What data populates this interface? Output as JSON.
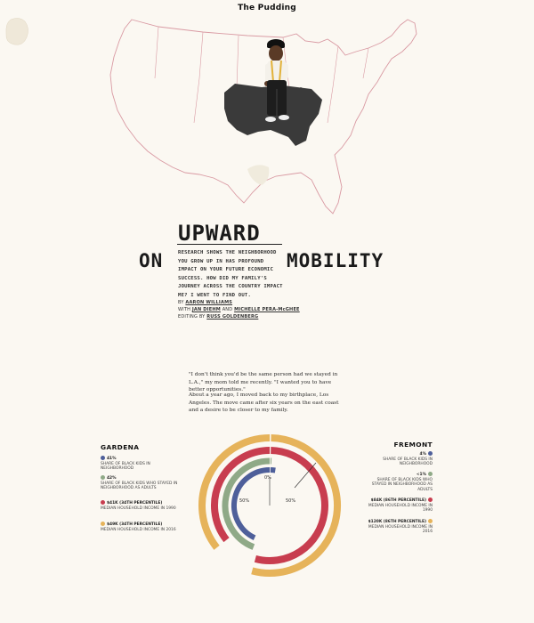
{
  "header": {
    "brand": "The Pudding"
  },
  "title": {
    "on": "ON",
    "upward": "UPWARD",
    "mobility": "MOBILITY"
  },
  "dek": "RESEARCH SHOWS THE NEIGHBORHOOD YOU GROW UP IN HAS PROFOUND IMPACT ON YOUR FUTURE ECONOMIC SUCCESS. HOW DID MY FAMILY'S JOURNEY ACROSS THE COUNTRY IMPACT ME? I WENT TO FIND OUT.",
  "byline": {
    "by": "BY",
    "author": "AARON WILLIAMS",
    "with": "WITH",
    "contrib1": "JAN DIEHM",
    "and": "AND",
    "contrib2": "MICHELLE PERA-McGHEE",
    "edited": "EDITING BY",
    "editor": "RUSS GOLDENBERG"
  },
  "story": {
    "p1": "\"I don't think you'd be the same person had we stayed in L.A.,\" my mom told me recently. \"I wanted you to have better opportunities.\"",
    "p2": "About a year ago, I moved back to my birthplace, Los Angeles. The move came after six years on the east coast and a desire to be closer to my family."
  },
  "colors": {
    "blue": "#4e5f9a",
    "green": "#8fa987",
    "red": "#c83d4f",
    "yellow": "#e6b35a",
    "ink": "#2a2a2a",
    "map_stroke": "#d99aa3"
  },
  "comparison": {
    "left": {
      "title": "GARDENA",
      "stats": [
        {
          "value": "41%",
          "label": "SHARE OF BLACK KIDS IN NEIGHBORHOOD",
          "color": "blue"
        },
        {
          "value": "42%",
          "label": "SHARE OF BLACK KIDS WHO STAYED IN NEIGHBORHOOD AS ADULTS",
          "color": "green"
        },
        {
          "value": "$41K (34TH PERCENTILE)",
          "label": "MEDIAN HOUSEHOLD INCOME IN 1990",
          "color": "red"
        },
        {
          "value": "$49K (34TH PERCENTILE)",
          "label": "MEDIAN HOUSEHOLD INCOME IN 2016",
          "color": "yellow"
        }
      ]
    },
    "right": {
      "title": "FREMONT",
      "stats": [
        {
          "value": "4%",
          "label": "SHARE OF BLACK KIDS IN NEIGHBORHOOD",
          "color": "blue"
        },
        {
          "value": "<1%",
          "label": "SHARE OF BLACK KIDS WHO STAYED IN NEIGHBORHOOD AS ADULTS",
          "color": "green"
        },
        {
          "value": "$84K (86TH PERCENTILE)",
          "label": "MEDIAN HOUSEHOLD INCOME IN 1990",
          "color": "red"
        },
        {
          "value": "$120K (86TH PERCENTILE)",
          "label": "MEDIAN HOUSEHOLD INCOME IN 2016",
          "color": "yellow"
        }
      ]
    },
    "axis_labels": {
      "center": "0%",
      "left": "50%",
      "right": "50%"
    },
    "arcs_left_fraction": {
      "blue": 0.41,
      "green": 0.42,
      "red": 0.34,
      "yellow": 0.34
    },
    "arcs_right_fraction": {
      "blue": 0.04,
      "green": 0.005,
      "red": 0.86,
      "yellow": 0.86
    }
  }
}
